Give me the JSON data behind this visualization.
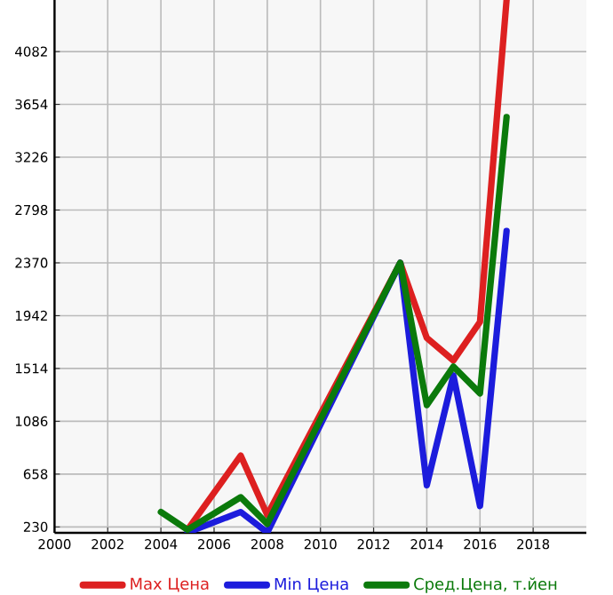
{
  "chart_data": {
    "type": "line",
    "xlim": [
      2000,
      2020
    ],
    "ylim": [
      182,
      4500
    ],
    "xticks": [
      2000,
      2002,
      2004,
      2006,
      2008,
      2010,
      2012,
      2014,
      2016,
      2018
    ],
    "yticks": [
      230,
      658,
      1086,
      1514,
      1942,
      2370,
      2798,
      3226,
      3654,
      4082
    ],
    "grid": true,
    "legend": "bottom",
    "marker": "none",
    "line_style": "solid",
    "series": [
      {
        "name": "Max Цена",
        "color": "#dd2020",
        "x": [
          2005,
          2007,
          2008,
          2013,
          2014,
          2015,
          2016,
          2017
        ],
        "values": [
          207,
          808,
          327,
          2370,
          1761,
          1579,
          1891,
          4500
        ]
      },
      {
        "name": "Min Цена",
        "color": "#1c1cdc",
        "x": [
          2005,
          2007,
          2008,
          2013,
          2014,
          2015,
          2016,
          2017
        ],
        "values": [
          185,
          351,
          185,
          2370,
          568,
          1458,
          399,
          2628
        ]
      },
      {
        "name": "Сред.Цена, т.йен",
        "color": "#0b7a0b",
        "x": [
          2004,
          2005,
          2007,
          2008,
          2013,
          2014,
          2015,
          2016,
          2017
        ],
        "values": [
          351,
          207,
          471,
          255,
          2370,
          1217,
          1530,
          1313,
          3551
        ]
      }
    ]
  }
}
